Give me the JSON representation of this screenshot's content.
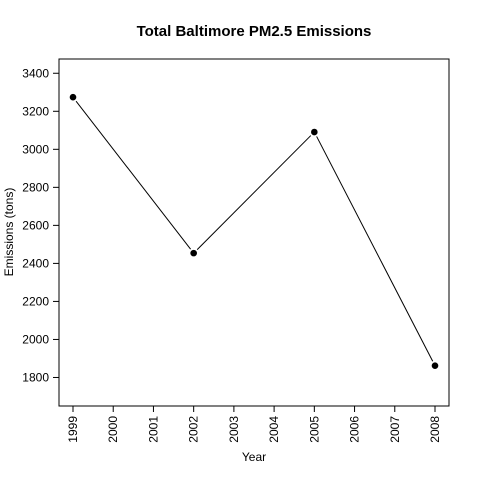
{
  "chart_data": {
    "type": "line",
    "title": "Total Baltimore PM2.5 Emissions",
    "xlabel": "Year",
    "ylabel": "Emissions (tons)",
    "x": [
      1999,
      2002,
      2005,
      2008
    ],
    "series": [
      {
        "values": [
          3274,
          2454,
          3091,
          1862
        ]
      }
    ],
    "xlim": [
      1999,
      2008
    ],
    "ylim": [
      1650,
      3475
    ],
    "x_ticks": [
      "1999",
      "2000",
      "2001",
      "2002",
      "2003",
      "2004",
      "2005",
      "2006",
      "2007",
      "2008"
    ],
    "y_ticks": [
      "1800",
      "2000",
      "2200",
      "2400",
      "2600",
      "2800",
      "3000",
      "3200",
      "3400"
    ],
    "x_tick_orientation": "vertical",
    "y_tick_orientation": "horizontal",
    "markers": "filled-circle",
    "grid": false,
    "legend": "none",
    "line_color": "#000000"
  }
}
